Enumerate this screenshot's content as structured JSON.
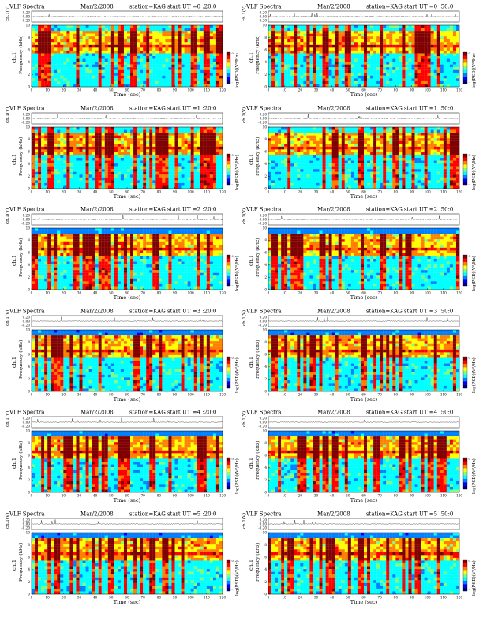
{
  "figure": {
    "title_left": "VLF Spectra",
    "date": "Mar/2/2008",
    "station": "station=KAG"
  },
  "chart_data": {
    "type": "heatmap",
    "panels": [
      {
        "title_left": "VLF Spectra",
        "date": "Mar/2/2008",
        "station": "station=KAG",
        "start": "start  UT =0 :20:0"
      },
      {
        "title_left": "VLF Spectra",
        "date": "Mar/2/2008",
        "station": "station=KAG",
        "start": "start  UT =0 :50:0"
      },
      {
        "title_left": "VLF Spectra",
        "date": "Mar/2/2008",
        "station": "station=KAG",
        "start": "start  UT =1 :20:0"
      },
      {
        "title_left": "VLF Spectra",
        "date": "Mar/2/2008",
        "station": "station=KAG",
        "start": "start  UT =1 :50:0"
      },
      {
        "title_left": "VLF Spectra",
        "date": "Mar/2/2008",
        "station": "station=KAG",
        "start": "start  UT =2 :20:0"
      },
      {
        "title_left": "VLF Spectra",
        "date": "Mar/2/2008",
        "station": "station=KAG",
        "start": "start  UT =2 :50:0"
      },
      {
        "title_left": "VLF Spectra",
        "date": "Mar/2/2008",
        "station": "station=KAG",
        "start": "start  UT =3 :20:0"
      },
      {
        "title_left": "VLF Spectra",
        "date": "Mar/2/2008",
        "station": "station=KAG",
        "start": "start  UT =3 :50:0"
      },
      {
        "title_left": "VLF Spectra",
        "date": "Mar/2/2008",
        "station": "station=KAG",
        "start": "start  UT =4 :20:0"
      },
      {
        "title_left": "VLF Spectra",
        "date": "Mar/2/2008",
        "station": "station=KAG",
        "start": "start  UT =4 :50:0"
      },
      {
        "title_left": "VLF Spectra",
        "date": "Mar/2/2008",
        "station": "station=KAG",
        "start": "start  UT =5 :20:0"
      },
      {
        "title_left": "VLF Spectra",
        "date": "Mar/2/2008",
        "station": "station=KAG",
        "start": "start  UT =5 :50:0"
      }
    ],
    "waveform_ylabel": "ch.1(V)",
    "waveform_ticks": [
      "0.20",
      "0.00",
      "-0.20"
    ],
    "ylabel_line1": "ch.1",
    "ylabel_line2": "Frequency  (kHz)",
    "y_ticks": [
      "0",
      "2",
      "4",
      "6",
      "8",
      "10"
    ],
    "ylim": [
      0,
      10
    ],
    "xlabel": "Time  (sec)",
    "x_ticks": [
      "0",
      "10",
      "20",
      "30",
      "40",
      "50",
      "60",
      "70",
      "80",
      "90",
      "100",
      "110",
      "120"
    ],
    "xlim": [
      0,
      120
    ],
    "colorbar_label": "log(PSD)(V²/Hz)",
    "colorbar_ticks": [
      "0",
      "-"
    ],
    "colormap": [
      "#00007f",
      "#0000ff",
      "#0080ff",
      "#00ffff",
      "#80ff80",
      "#ffff00",
      "#ff8000",
      "#ff0000",
      "#7f0000"
    ],
    "grid": false
  }
}
